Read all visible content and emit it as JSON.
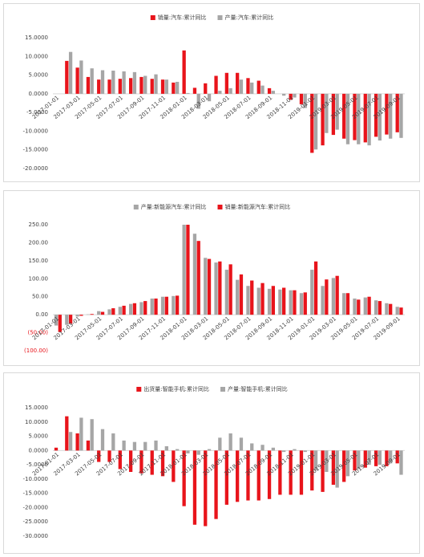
{
  "chart_data": [
    {
      "type": "bar",
      "categories": [
        "2017-01-01",
        null,
        "2017-03-01",
        null,
        "2017-05-01",
        null,
        "2017-07-01",
        null,
        "2017-09-01",
        null,
        "2017-11-01",
        null,
        "2018-01-01",
        null,
        "2018-03-01",
        null,
        "2018-05-01",
        null,
        "2018-07-01",
        null,
        "2018-09-01",
        null,
        "2018-11-01",
        null,
        "2019-01-01",
        null,
        "2019-03-01",
        null,
        "2019-05-01",
        null,
        "2019-07-01",
        null,
        "2019-09-01"
      ],
      "series": [
        {
          "name": "销量:汽车:累计同比",
          "color": "#e8141b",
          "values": [
            null,
            8.8,
            7.0,
            4.5,
            3.8,
            3.8,
            4.0,
            4.2,
            4.5,
            4.0,
            3.8,
            3.0,
            11.6,
            1.6,
            2.8,
            4.8,
            5.6,
            5.6,
            4.2,
            3.5,
            1.5,
            0,
            -1.6,
            -2.8,
            -15.8,
            -13.8,
            -11.0,
            -12.0,
            -12.4,
            -13.0,
            -11.5,
            -10.9,
            -10.3
          ]
        },
        {
          "name": "产量:汽车:累计同比",
          "color": "#a6a6a6",
          "values": [
            null,
            11.2,
            8.9,
            6.8,
            6.3,
            6.2,
            6.0,
            5.8,
            4.8,
            5.2,
            3.8,
            3.2,
            0.2,
            -4.0,
            -2.0,
            0.8,
            1.5,
            3.8,
            3.0,
            2.2,
            0.8,
            -0.5,
            -1.0,
            -3.8,
            -14.9,
            -10.5,
            -9.6,
            -13.5,
            -13.5,
            -13.8,
            -12.5,
            -12.0,
            -11.8
          ]
        }
      ],
      "ylim": [
        -20,
        15
      ],
      "yticks": [
        {
          "value": 15,
          "label": "15.0000"
        },
        {
          "value": 10,
          "label": "10.0000"
        },
        {
          "value": 5,
          "label": "5.0000"
        },
        {
          "value": 0,
          "label": "0.0000"
        },
        {
          "value": -5,
          "label": "-5.0000"
        },
        {
          "value": -10,
          "label": "-10.0000"
        },
        {
          "value": -15,
          "label": "-15.0000"
        },
        {
          "value": -20,
          "label": "-20.0000"
        }
      ]
    },
    {
      "type": "bar",
      "categories": [
        "2017-01-01",
        null,
        "2017-03-01",
        null,
        "2017-05-01",
        null,
        "2017-07-01",
        null,
        "2017-09-01",
        null,
        "2017-11-01",
        null,
        "2018-01-01",
        null,
        "2018-03-01",
        null,
        "2018-05-01",
        null,
        "2018-07-01",
        null,
        "2018-09-01",
        null,
        "2018-11-01",
        null,
        "2019-01-01",
        null,
        "2019-03-01",
        null,
        "2019-05-01",
        null,
        "2019-07-01",
        null,
        "2019-09-01"
      ],
      "series": [
        {
          "name": "产量:新能源汽车:累计同比",
          "color": "#a6a6a6",
          "values": [
            -30,
            -28,
            -5,
            1,
            10,
            15,
            22,
            30,
            35,
            45,
            50,
            52,
            250,
            225,
            158,
            145,
            125,
            97,
            80,
            75,
            72,
            70,
            68,
            60,
            125,
            80,
            102,
            60,
            45,
            48,
            40,
            32,
            22
          ]
        },
        {
          "name": "销量:新能源汽车:累计同比",
          "color": "#e8141b",
          "values": [
            -48,
            -25,
            -3,
            2,
            8,
            18,
            25,
            32,
            38,
            45,
            50,
            53,
            250,
            205,
            155,
            148,
            140,
            112,
            95,
            88,
            80,
            75,
            68,
            62,
            148,
            98,
            108,
            60,
            42,
            50,
            38,
            30,
            20
          ]
        }
      ],
      "ylim": [
        -100,
        250
      ],
      "yticks": [
        {
          "value": 250,
          "label": "250.00"
        },
        {
          "value": 200,
          "label": "200.00"
        },
        {
          "value": 150,
          "label": "150.00"
        },
        {
          "value": 100,
          "label": "100.00"
        },
        {
          "value": 50,
          "label": "50.00"
        },
        {
          "value": 0,
          "label": "0.00"
        },
        {
          "value": -50,
          "label": "(50.00)"
        },
        {
          "value": -100,
          "label": "(100.00)"
        }
      ],
      "negative_tick_color": "#e8141b"
    },
    {
      "type": "bar",
      "categories": [
        "2017-01-01",
        null,
        "2017-03-01",
        null,
        "2017-05-01",
        null,
        "2017-07-01",
        null,
        "2017-09-01",
        null,
        "2017-11-01",
        null,
        "2018-01-01",
        null,
        "2018-03-01",
        null,
        "2018-05-01",
        null,
        "2018-07-01",
        null,
        "2018-09-01",
        null,
        "2018-11-01",
        null,
        "2019-01-01",
        null,
        "2019-03-01",
        null,
        "2019-05-01",
        null,
        "2019-07-01",
        null,
        "2019-09-01"
      ],
      "series": [
        {
          "name": "出货量:智能手机:累计同比",
          "color": "#e8141b",
          "values": [
            1.0,
            12.0,
            6.0,
            3.5,
            -4.0,
            -4.0,
            -6.5,
            -7.5,
            -8.0,
            -8.5,
            -9.0,
            -11.0,
            -19.5,
            -26.0,
            -26.5,
            -24.0,
            -19.0,
            -18.0,
            -17.5,
            -17.5,
            -17.0,
            -15.5,
            -15.5,
            -15.5,
            -14.0,
            -14.5,
            -12.0,
            -11.0,
            -7.0,
            -6.0,
            -5.5,
            -5.5,
            -4.5
          ]
        },
        {
          "name": "产量:智能手机:累计同比",
          "color": "#a6a6a6",
          "values": [
            null,
            6.5,
            11.5,
            11.0,
            7.5,
            6.0,
            3.5,
            3.0,
            3.0,
            3.5,
            1.5,
            0.5,
            -1.0,
            -1.5,
            0.5,
            4.5,
            6.0,
            4.5,
            2.5,
            2.0,
            1.0,
            -0.5,
            0.5,
            -0.5,
            -7.0,
            -7.5,
            -13.0,
            -9.0,
            -6.5,
            -5.0,
            -5.0,
            -4.5,
            -8.5
          ]
        }
      ],
      "ylim": [
        -30,
        15
      ],
      "yticks": [
        {
          "value": 15,
          "label": "15.0000"
        },
        {
          "value": 10,
          "label": "10.0000"
        },
        {
          "value": 5,
          "label": "5.0000"
        },
        {
          "value": 0,
          "label": "0.0000"
        },
        {
          "value": -5,
          "label": "-5.0000"
        },
        {
          "value": -10,
          "label": "-10.0000"
        },
        {
          "value": -15,
          "label": "-15.0000"
        },
        {
          "value": -20,
          "label": "-20.0000"
        },
        {
          "value": -25,
          "label": "-25.0000"
        },
        {
          "value": -30,
          "label": "-30.0000"
        }
      ]
    }
  ]
}
